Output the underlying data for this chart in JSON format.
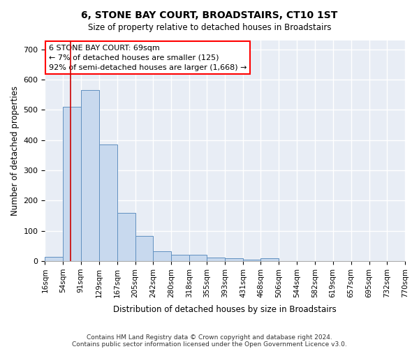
{
  "title": "6, STONE BAY COURT, BROADSTAIRS, CT10 1ST",
  "subtitle": "Size of property relative to detached houses in Broadstairs",
  "xlabel": "Distribution of detached houses by size in Broadstairs",
  "ylabel": "Number of detached properties",
  "bar_color": "#c8d9ee",
  "bar_edge_color": "#6090c0",
  "background_color": "#e8edf5",
  "grid_color": "#ffffff",
  "annotation_line1": "6 STONE BAY COURT: 69sqm",
  "annotation_line2": "← 7% of detached houses are smaller (125)",
  "annotation_line3": "92% of semi-detached houses are larger (1,668) →",
  "vline_x": 69,
  "bin_edges": [
    16,
    54,
    91,
    129,
    167,
    205,
    242,
    280,
    318,
    355,
    393,
    431,
    468,
    506,
    544,
    582,
    619,
    657,
    695,
    732,
    770
  ],
  "bar_heights": [
    13,
    510,
    565,
    385,
    160,
    82,
    32,
    20,
    22,
    12,
    9,
    5,
    9,
    0,
    0,
    0,
    0,
    0,
    0,
    0
  ],
  "ylim": [
    0,
    730
  ],
  "yticks": [
    0,
    100,
    200,
    300,
    400,
    500,
    600,
    700
  ],
  "footnote1": "Contains HM Land Registry data © Crown copyright and database right 2024.",
  "footnote2": "Contains public sector information licensed under the Open Government Licence v3.0."
}
